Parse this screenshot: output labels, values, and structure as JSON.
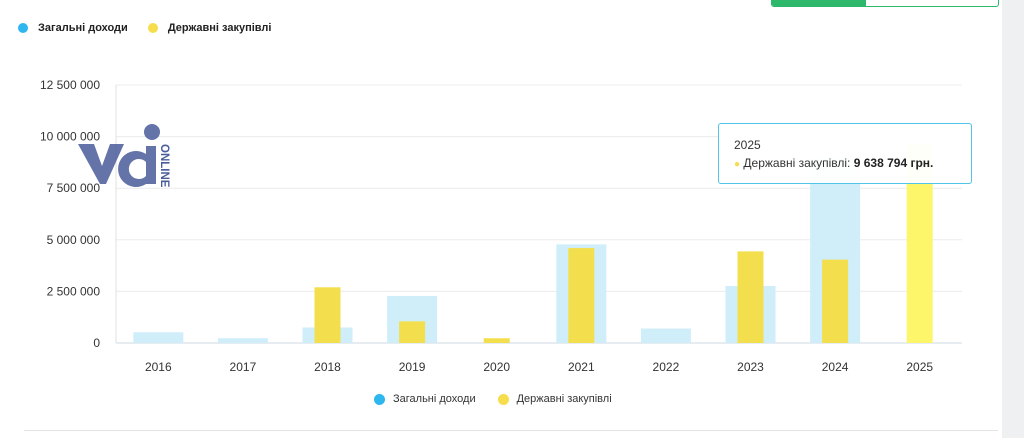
{
  "colors": {
    "income": "#cfeefa",
    "income_dot": "#2db7ee",
    "procurement": "#f3df4e",
    "procurement_highlight": "#fdf56a",
    "procurement_dot": "#f5dd4b",
    "accent": "#2db86b"
  },
  "legend": {
    "income_label": "Загальні доходи",
    "procurement_label": "Державні закупівлі"
  },
  "logo": {
    "text": "ONLINE"
  },
  "tooltip": {
    "year": "2025",
    "series_label": "Державні закупівлі:",
    "value": "9 638 794 грн."
  },
  "chart_data": {
    "type": "bar",
    "categories": [
      "2016",
      "2017",
      "2018",
      "2019",
      "2020",
      "2021",
      "2022",
      "2023",
      "2024",
      "2025"
    ],
    "series": [
      {
        "name": "Загальні доходи",
        "values": [
          520000,
          230000,
          750000,
          2280000,
          0,
          4780000,
          700000,
          2760000,
          9000000,
          0
        ]
      },
      {
        "name": "Державні закупівлі",
        "values": [
          0,
          0,
          2700000,
          1050000,
          230000,
          4600000,
          0,
          4440000,
          4040000,
          9638794
        ]
      }
    ],
    "y_ticks": [
      "12 500 000",
      "10 000 000",
      "7 500 000",
      "5 000 000",
      "2 500 000",
      "0"
    ],
    "y_tick_values": [
      12500000,
      10000000,
      7500000,
      5000000,
      2500000,
      0
    ],
    "ylim": [
      0,
      12500000
    ],
    "grid": true,
    "legend_position": "top-left and bottom-center",
    "highlighted_category": "2025"
  }
}
